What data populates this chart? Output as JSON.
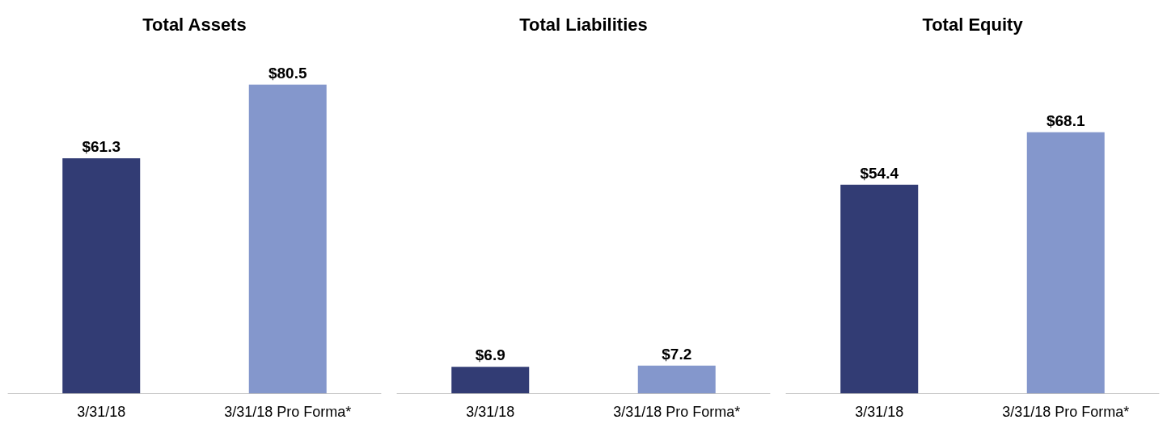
{
  "chart_data": [
    {
      "type": "bar",
      "title": "Total Assets",
      "categories": [
        "3/31/18",
        "3/31/18 Pro Forma*"
      ],
      "values": [
        61.3,
        80.5
      ],
      "colors": [
        "#323c74",
        "#8497cc"
      ],
      "value_labels": [
        "$61.3",
        "$80.5"
      ]
    },
    {
      "type": "bar",
      "title": "Total Liabilities",
      "categories": [
        "3/31/18",
        "3/31/18 Pro Forma*"
      ],
      "values": [
        6.9,
        7.2
      ],
      "colors": [
        "#323c74",
        "#8497cc"
      ],
      "value_labels": [
        "$6.9",
        "$7.2"
      ]
    },
    {
      "type": "bar",
      "title": "Total Equity",
      "categories": [
        "3/31/18",
        "3/31/18 Pro Forma*"
      ],
      "values": [
        54.4,
        68.1
      ],
      "colors": [
        "#323c74",
        "#8497cc"
      ],
      "value_labels": [
        "$54.4",
        "$68.1"
      ]
    }
  ]
}
